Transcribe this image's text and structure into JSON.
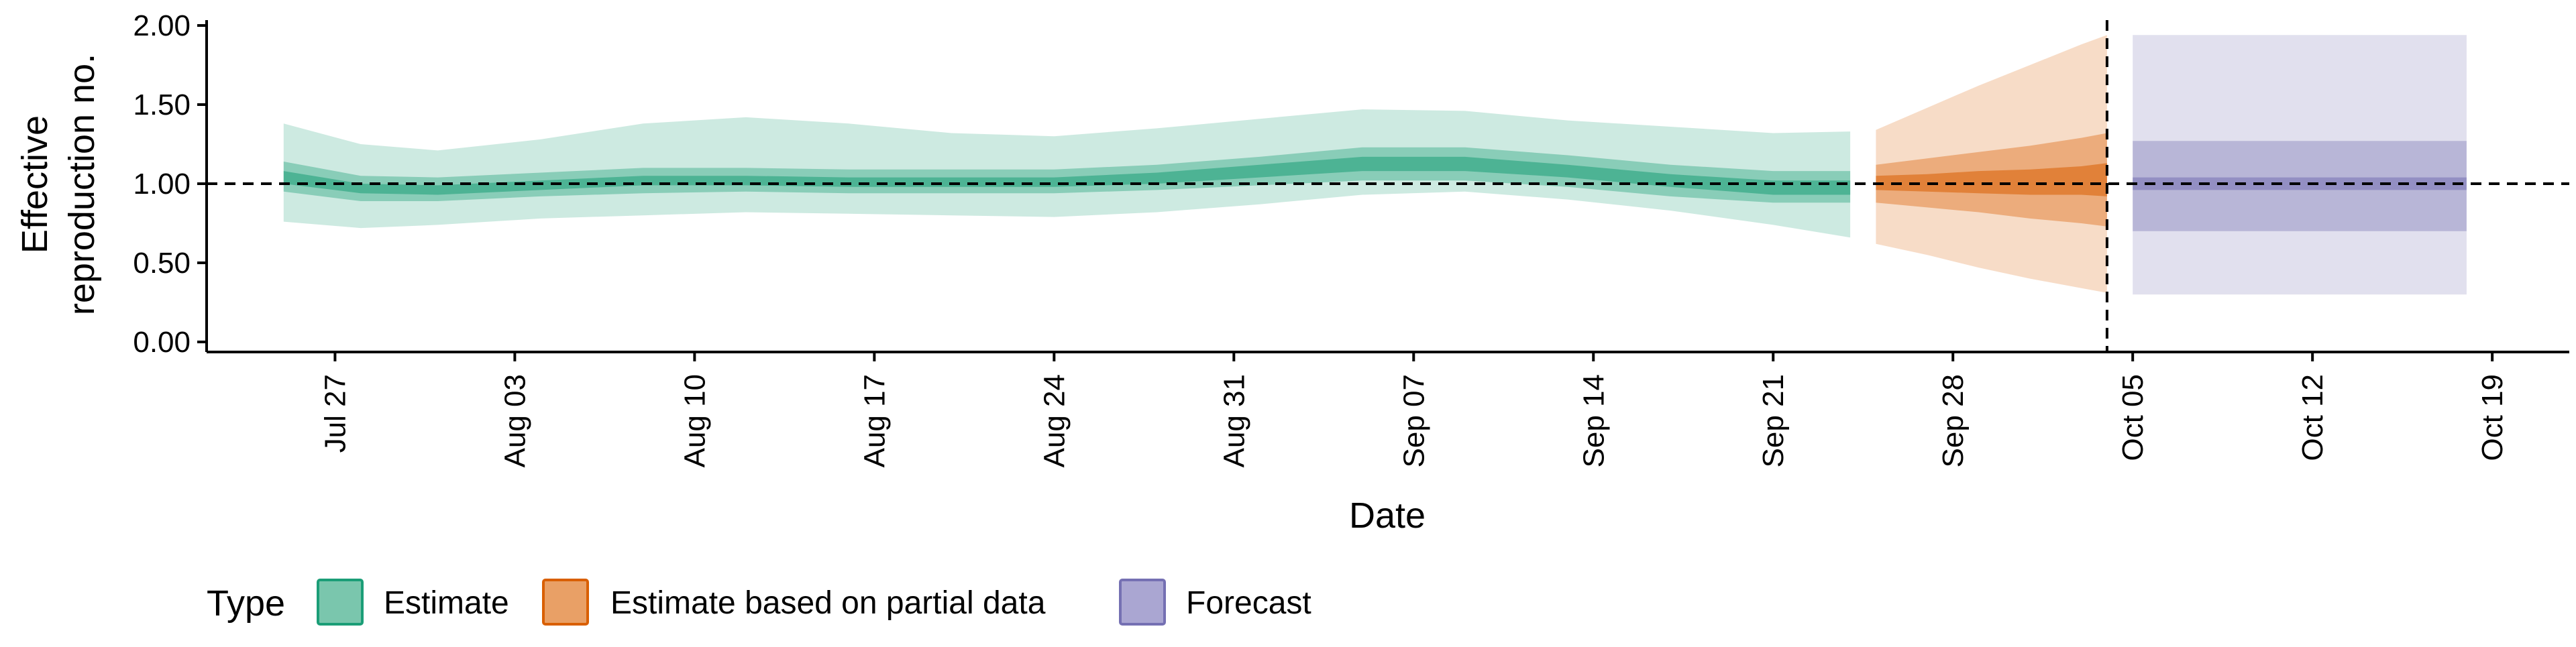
{
  "chart_data": {
    "type": "area",
    "ylabel_lines": [
      "Effective",
      "reproduction no."
    ],
    "xlabel": "Date",
    "y_ticks": [
      "0.00",
      "0.50",
      "1.00",
      "1.50",
      "2.00"
    ],
    "ylim": [
      0,
      2.0
    ],
    "x_ticks": [
      "Jul 27",
      "Aug 03",
      "Aug 10",
      "Aug 17",
      "Aug 24",
      "Aug 31",
      "Sep 07",
      "Sep 14",
      "Sep 21",
      "Sep 28",
      "Oct 05",
      "Oct 12",
      "Oct 19"
    ],
    "x_tick_dates": [
      "2020-07-27",
      "2020-08-03",
      "2020-08-10",
      "2020-08-17",
      "2020-08-24",
      "2020-08-31",
      "2020-09-07",
      "2020-09-14",
      "2020-09-21",
      "2020-09-28",
      "2020-10-05",
      "2020-10-12",
      "2020-10-19"
    ],
    "xlim": [
      "2020-07-22",
      "2020-10-22"
    ],
    "reference_line_y": 1.0,
    "forecast_start_marker": "2020-10-04",
    "legend": {
      "title": "Type",
      "placement": "bottom-left",
      "items": [
        {
          "label": "Estimate",
          "fill": "#7ac6ad",
          "stroke": "#1b9e77"
        },
        {
          "label": "Estimate based on partial data",
          "fill": "#e9a066",
          "stroke": "#d95f02"
        },
        {
          "label": "Forecast",
          "fill": "#aaa6d2",
          "stroke": "#7570b3"
        }
      ]
    },
    "series": [
      {
        "name": "Estimate",
        "color": "#1b9e77",
        "x": [
          "2020-07-25",
          "2020-07-28",
          "2020-07-31",
          "2020-08-04",
          "2020-08-08",
          "2020-08-12",
          "2020-08-16",
          "2020-08-20",
          "2020-08-24",
          "2020-08-28",
          "2020-09-01",
          "2020-09-05",
          "2020-09-09",
          "2020-09-13",
          "2020-09-17",
          "2020-09-21",
          "2020-09-24"
        ],
        "median": [
          1.04,
          0.97,
          0.96,
          0.99,
          1.02,
          1.02,
          1.01,
          1.01,
          1.01,
          1.03,
          1.08,
          1.13,
          1.13,
          1.08,
          1.02,
          0.98,
          0.98
        ],
        "lower50": [
          1.0,
          0.94,
          0.93,
          0.96,
          0.99,
          0.99,
          0.98,
          0.98,
          0.98,
          1.0,
          1.04,
          1.08,
          1.08,
          1.04,
          0.98,
          0.93,
          0.93
        ],
        "upper50": [
          1.08,
          1.0,
          0.99,
          1.02,
          1.05,
          1.05,
          1.04,
          1.04,
          1.04,
          1.07,
          1.12,
          1.17,
          1.17,
          1.12,
          1.06,
          1.02,
          1.02
        ],
        "lower90": [
          0.95,
          0.89,
          0.89,
          0.92,
          0.94,
          0.95,
          0.94,
          0.94,
          0.94,
          0.96,
          0.99,
          1.02,
          1.02,
          0.98,
          0.92,
          0.88,
          0.88
        ],
        "upper90": [
          1.14,
          1.05,
          1.04,
          1.07,
          1.1,
          1.1,
          1.09,
          1.09,
          1.09,
          1.12,
          1.17,
          1.23,
          1.23,
          1.18,
          1.12,
          1.08,
          1.08
        ],
        "lower_outer": [
          0.76,
          0.72,
          0.74,
          0.78,
          0.8,
          0.82,
          0.81,
          0.8,
          0.79,
          0.82,
          0.87,
          0.93,
          0.95,
          0.9,
          0.83,
          0.74,
          0.66
        ],
        "upper_outer": [
          1.38,
          1.25,
          1.21,
          1.28,
          1.38,
          1.42,
          1.38,
          1.32,
          1.3,
          1.35,
          1.41,
          1.47,
          1.46,
          1.4,
          1.36,
          1.32,
          1.33
        ]
      },
      {
        "name": "Estimate based on partial data",
        "color": "#d95f02",
        "x": [
          "2020-09-25",
          "2020-09-27",
          "2020-09-29",
          "2020-10-01",
          "2020-10-03",
          "2020-10-04"
        ],
        "median": [
          1.0,
          1.0,
          1.01,
          1.0,
          1.02,
          1.03
        ],
        "lower50": [
          0.96,
          0.95,
          0.94,
          0.93,
          0.93,
          0.92
        ],
        "upper50": [
          1.05,
          1.06,
          1.08,
          1.09,
          1.11,
          1.13
        ],
        "lower90": [
          0.88,
          0.85,
          0.82,
          0.78,
          0.75,
          0.73
        ],
        "upper90": [
          1.12,
          1.16,
          1.2,
          1.24,
          1.29,
          1.32
        ],
        "lower_outer": [
          0.62,
          0.55,
          0.47,
          0.4,
          0.34,
          0.31
        ],
        "upper_outer": [
          1.34,
          1.48,
          1.62,
          1.75,
          1.88,
          1.94
        ]
      },
      {
        "name": "Forecast",
        "color": "#7570b3",
        "x": [
          "2020-10-05",
          "2020-10-18"
        ],
        "median": [
          1.0,
          1.0
        ],
        "lower50": [
          0.96,
          0.96
        ],
        "upper50": [
          1.04,
          1.04
        ],
        "lower90": [
          0.7,
          0.7
        ],
        "upper90": [
          1.27,
          1.27
        ],
        "lower_outer": [
          0.3,
          0.3
        ],
        "upper_outer": [
          1.94,
          1.94
        ]
      }
    ]
  }
}
